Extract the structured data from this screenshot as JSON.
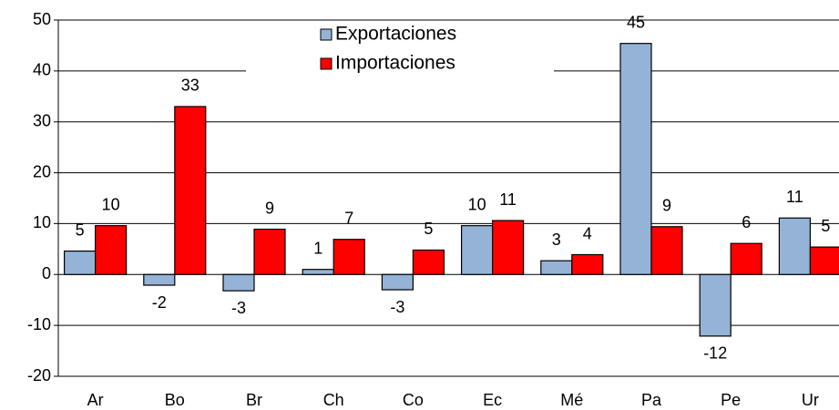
{
  "chart_data": {
    "type": "bar",
    "categories": [
      "Ar",
      "Bo",
      "Br",
      "Ch",
      "Co",
      "Ec",
      "Mé",
      "Pa",
      "Pe",
      "Ur"
    ],
    "series": [
      {
        "name": "Exportaciones",
        "color": "#95b3d7",
        "values": [
          4.6,
          -2.1,
          -3.2,
          1.0,
          -3.0,
          9.6,
          2.7,
          45.4,
          -12.1,
          11.1
        ],
        "value_labels": [
          "5",
          "-2",
          "-3",
          "1",
          "-3",
          "10",
          "3",
          "45",
          "-12",
          "11"
        ]
      },
      {
        "name": "Importaciones",
        "color": "#ff0000",
        "values": [
          9.6,
          33,
          8.9,
          6.9,
          4.8,
          10.6,
          3.9,
          9.4,
          6.1,
          5.4
        ],
        "value_labels": [
          "10",
          "33",
          "9",
          "7",
          "5",
          "11",
          "4",
          "9",
          "6",
          "5"
        ]
      }
    ],
    "ylim": [
      -20,
      50
    ],
    "yticks": [
      -20,
      -10,
      0,
      10,
      20,
      30,
      40,
      50
    ],
    "grid": true,
    "legend": "top"
  }
}
